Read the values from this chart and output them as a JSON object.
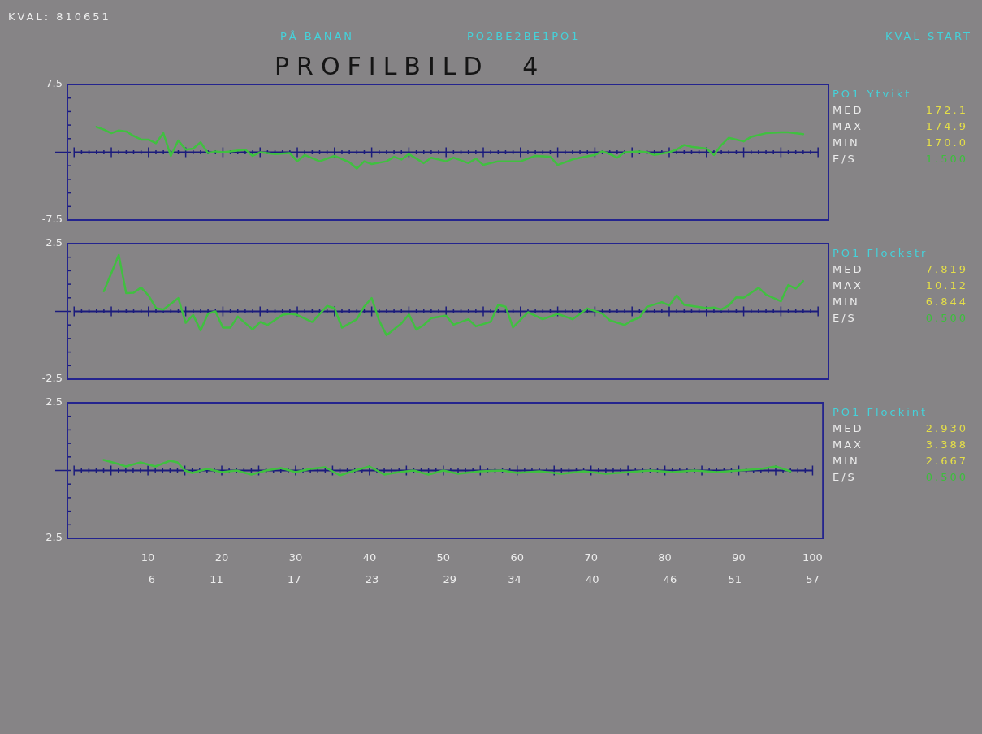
{
  "chart_data": [
    {
      "type": "other",
      "title": "PROFILBILD 4",
      "annotations": [
        "KVAL: 810651",
        "PÅ BANAN",
        "PO2BE2BE1PO1",
        "KVAL START"
      ]
    },
    {
      "type": "line",
      "color": "#40c040",
      "xlim": [
        -0.9,
        101.4
      ],
      "xticks": [
        {
          "value": 0,
          "label": null
        },
        {
          "value": 5,
          "label": null
        },
        10,
        {
          "value": 15,
          "label": null
        },
        20,
        {
          "value": 25,
          "label": null
        },
        30,
        {
          "value": 35,
          "label": null
        },
        40,
        {
          "value": 45,
          "label": null
        },
        50,
        {
          "value": 55,
          "label": null
        },
        60,
        {
          "value": 65,
          "label": null
        },
        70,
        {
          "value": 75,
          "label": null
        },
        80,
        {
          "value": 85,
          "label": null
        },
        90,
        {
          "value": 95,
          "label": null
        },
        100
      ],
      "ylim": [
        -7.5,
        7.5
      ],
      "yticks": [
        -7.5,
        {
          "value": -6,
          "label": null
        },
        {
          "value": -4.5,
          "label": null
        },
        {
          "value": -3,
          "label": null
        },
        {
          "value": -1.5,
          "label": null
        },
        {
          "value": 0,
          "label": null
        },
        {
          "value": 1.5,
          "label": null
        },
        {
          "value": 3,
          "label": null
        },
        {
          "value": 4.5,
          "label": null
        },
        {
          "value": 6,
          "label": null
        },
        7.5
      ],
      "tick_labels": "y",
      "ref_lines": [
        {
          "axis": "y",
          "value": 0,
          "color": "#1b1b7c"
        }
      ],
      "x": [
        3,
        4,
        5,
        6,
        7,
        8,
        9,
        10,
        11,
        12,
        13,
        14,
        15,
        16,
        17,
        18,
        19,
        20,
        21,
        23,
        24,
        25,
        27,
        29,
        30,
        31,
        33,
        35,
        37,
        38,
        39,
        40,
        42,
        43,
        44,
        45,
        47,
        48,
        50,
        51,
        53,
        54,
        55,
        57,
        60,
        62,
        64,
        65,
        67,
        68,
        70,
        71,
        72,
        73,
        74,
        76,
        77,
        78,
        80,
        81,
        82,
        83,
        85,
        86,
        87,
        88,
        90,
        91,
        93,
        95,
        96,
        98
      ],
      "values": [
        2.8,
        2.5,
        2.1,
        2.4,
        2.3,
        1.8,
        1.4,
        1.4,
        1.0,
        2.1,
        -0.4,
        1.3,
        0.3,
        0.4,
        1.1,
        -0.1,
        0.1,
        0,
        0.1,
        0.3,
        -0.4,
        0,
        -0.2,
        -0.1,
        -1.0,
        -0.3,
        -1.0,
        -0.4,
        -1.1,
        -1.8,
        -1.0,
        -1.3,
        -1.0,
        -0.5,
        -0.8,
        -0.2,
        -1.2,
        -0.6,
        -1.0,
        -0.6,
        -1.2,
        -0.7,
        -1.4,
        -1.0,
        -1.0,
        -0.4,
        -0.5,
        -1.4,
        -0.8,
        -0.6,
        -0.3,
        0.1,
        -0.2,
        -0.6,
        0,
        0.1,
        0,
        -0.3,
        0,
        0.3,
        0.8,
        0.6,
        0.4,
        -0.3,
        0.8,
        1.6,
        1.2,
        1.7,
        2.1,
        2.2,
        2.2,
        2.0
      ],
      "annotations": [
        "PO1 Ytvikt",
        "MED",
        "172.1",
        "MAX",
        "174.9",
        "MIN",
        "170.0",
        "E/S",
        "1.500"
      ]
    },
    {
      "type": "line",
      "color": "#40c040",
      "xlim": [
        -0.9,
        101.4
      ],
      "xticks": [
        {
          "value": 0,
          "label": null
        },
        {
          "value": 5,
          "label": null
        },
        10,
        {
          "value": 15,
          "label": null
        },
        20,
        {
          "value": 25,
          "label": null
        },
        30,
        {
          "value": 35,
          "label": null
        },
        40,
        {
          "value": 45,
          "label": null
        },
        50,
        {
          "value": 55,
          "label": null
        },
        60,
        {
          "value": 65,
          "label": null
        },
        70,
        {
          "value": 75,
          "label": null
        },
        80,
        {
          "value": 85,
          "label": null
        },
        90,
        {
          "value": 95,
          "label": null
        },
        100
      ],
      "ylim": [
        -2.5,
        2.5
      ],
      "yticks": [
        -2.5,
        {
          "value": -2,
          "label": null
        },
        {
          "value": -1.5,
          "label": null
        },
        {
          "value": -1,
          "label": null
        },
        {
          "value": -0.5,
          "label": null
        },
        {
          "value": 0,
          "label": null
        },
        {
          "value": 0.5,
          "label": null
        },
        {
          "value": 1,
          "label": null
        },
        {
          "value": 1.5,
          "label": null
        },
        {
          "value": 2,
          "label": null
        },
        2.5
      ],
      "tick_labels": "y",
      "ref_lines": [
        {
          "axis": "y",
          "value": 0,
          "color": "#1b1b7c"
        }
      ],
      "x": [
        4,
        6,
        7,
        8,
        9,
        10,
        11,
        12,
        14,
        15,
        16,
        17,
        18,
        19,
        20,
        21,
        22,
        24,
        25,
        26,
        28,
        29,
        30,
        32,
        34,
        35,
        36,
        38,
        39,
        40,
        41,
        42,
        44,
        45,
        46,
        47,
        48,
        50,
        51,
        53,
        54,
        56,
        57,
        58,
        59,
        61,
        63,
        65,
        67,
        69,
        71,
        72,
        74,
        75,
        76,
        77,
        79,
        80,
        81,
        82,
        83,
        85,
        86,
        87,
        88,
        89,
        90,
        92,
        93,
        95,
        96,
        97,
        98
      ],
      "values": [
        0.74,
        2.08,
        0.67,
        0.69,
        0.88,
        0.59,
        0.12,
        0.07,
        0.49,
        -0.42,
        -0.13,
        -0.7,
        -0.08,
        0,
        -0.6,
        -0.6,
        -0.19,
        -0.67,
        -0.39,
        -0.5,
        -0.13,
        -0.08,
        -0.13,
        -0.39,
        0.2,
        0.12,
        -0.6,
        -0.29,
        0.18,
        0.49,
        -0.34,
        -0.88,
        -0.44,
        -0.11,
        -0.67,
        -0.5,
        -0.25,
        -0.16,
        -0.49,
        -0.29,
        -0.55,
        -0.38,
        0.24,
        0.17,
        -0.59,
        -0.03,
        -0.29,
        -0.09,
        -0.29,
        0.11,
        -0.08,
        -0.33,
        -0.5,
        -0.33,
        -0.23,
        0.17,
        0.34,
        0.22,
        0.59,
        0.24,
        0.2,
        0.12,
        0.14,
        0.07,
        0.22,
        0.52,
        0.5,
        0.87,
        0.62,
        0.37,
        0.97,
        0.84,
        1.12
      ],
      "annotations": [
        "PO1 Flockstr",
        "MED",
        "7.819",
        "MAX",
        "10.12",
        "MIN",
        "6.844",
        "E/S",
        "0.500"
      ]
    },
    {
      "type": "line",
      "color": "#40c040",
      "xlim": [
        -0.9,
        101.4
      ],
      "xticks": [
        {
          "value": 0,
          "label": null
        },
        {
          "value": 5,
          "label": null
        },
        10,
        {
          "value": 15,
          "label": null
        },
        20,
        {
          "value": 25,
          "label": null
        },
        30,
        {
          "value": 35,
          "label": null
        },
        40,
        {
          "value": 45,
          "label": null
        },
        50,
        {
          "value": 55,
          "label": null
        },
        60,
        {
          "value": 65,
          "label": null
        },
        70,
        {
          "value": 75,
          "label": null
        },
        80,
        {
          "value": 85,
          "label": null
        },
        90,
        {
          "value": 95,
          "label": null
        },
        100
      ],
      "x2lim": [
        -0.51,
        57.8
      ],
      "x2ticks": [
        6,
        11,
        17,
        23,
        29,
        34,
        40,
        46,
        51,
        57
      ],
      "ylim": [
        -2.5,
        2.5
      ],
      "yticks": [
        -2.5,
        {
          "value": -2,
          "label": null
        },
        {
          "value": -1.5,
          "label": null
        },
        {
          "value": -1,
          "label": null
        },
        {
          "value": -0.5,
          "label": null
        },
        {
          "value": 0,
          "label": null
        },
        {
          "value": 0.5,
          "label": null
        },
        {
          "value": 1,
          "label": null
        },
        {
          "value": 1.5,
          "label": null
        },
        {
          "value": 2,
          "label": null
        },
        2.5
      ],
      "ref_lines": [
        {
          "axis": "y",
          "value": 0,
          "color": "#1b1b7c"
        }
      ],
      "x": [
        4,
        6,
        7,
        9,
        11,
        13,
        14,
        15,
        16,
        18,
        20,
        22,
        24,
        26,
        28,
        30,
        32,
        34,
        36,
        38,
        40,
        42,
        44,
        46,
        48,
        50,
        52,
        55,
        58,
        60,
        63,
        66,
        69,
        72,
        75,
        78,
        81,
        84,
        87,
        90,
        93,
        95,
        97
      ],
      "values": [
        0.39,
        0.24,
        0.15,
        0.3,
        0.15,
        0.36,
        0.3,
        0,
        -0.09,
        0.06,
        -0.06,
        0,
        -0.15,
        0,
        0.09,
        -0.06,
        0.06,
        0.12,
        -0.18,
        0,
        0.15,
        -0.15,
        -0.06,
        0,
        -0.15,
        0,
        -0.12,
        -0.03,
        0,
        -0.09,
        -0.03,
        -0.12,
        -0.03,
        -0.12,
        -0.06,
        0,
        -0.06,
        0,
        -0.06,
        0,
        0.06,
        0.15,
        -0.03
      ],
      "annotations": [
        "PO1 Flockint",
        "MED",
        "2.930",
        "MAX",
        "3.388",
        "MIN",
        "2.667",
        "E/S",
        "0.500"
      ]
    }
  ]
}
